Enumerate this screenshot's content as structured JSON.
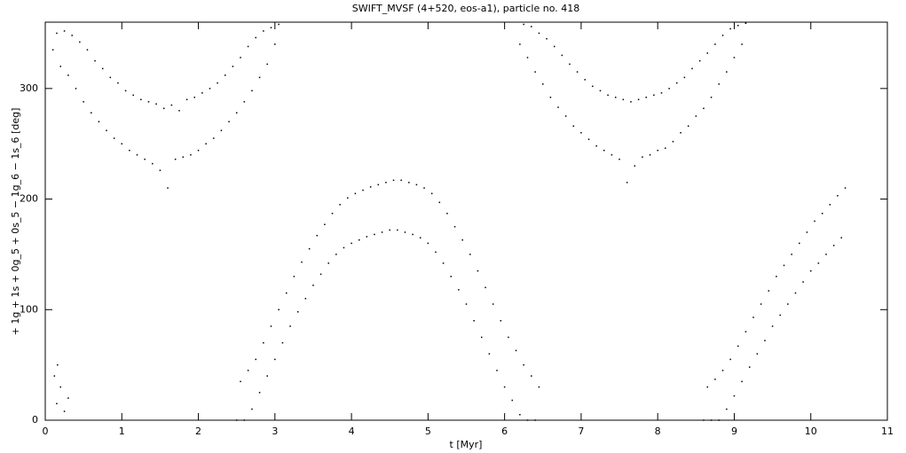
{
  "chart_data": {
    "type": "scatter",
    "title": "SWIFT_MVSF (4+520, eos-a1), particle no. 418",
    "x_label": "t [Myr]",
    "y_label": "+ 1g + 1s + 0g_5 + 0s_5 − 1g_6 − 1s_6 [deg]",
    "color": "#000000",
    "xlim": [
      0,
      11
    ],
    "ylim": [
      0,
      360
    ],
    "xticks": [
      0,
      1,
      2,
      3,
      4,
      5,
      6,
      7,
      8,
      9,
      10,
      11
    ],
    "yticks": [
      0,
      100,
      200,
      300
    ],
    "x": [
      0.1,
      0.15,
      0.2,
      0.25,
      0.3,
      0.35,
      0.4,
      0.45,
      0.5,
      0.55,
      0.6,
      0.65,
      0.7,
      0.75,
      0.8,
      0.85,
      0.9,
      0.95,
      1,
      1.05,
      1.1,
      1.15,
      1.2,
      1.25,
      1.3,
      1.35,
      1.4,
      1.45,
      1.5,
      1.55,
      1.6,
      1.65,
      1.7,
      1.75,
      1.8,
      1.85,
      1.9,
      1.95,
      2,
      2.05,
      2.1,
      2.15,
      2.2,
      2.25,
      2.3,
      2.35,
      2.4,
      2.45,
      2.5,
      2.55,
      2.6,
      2.65,
      2.7,
      2.75,
      2.8,
      2.85,
      2.9,
      2.95,
      3,
      3.05,
      0.12,
      0.15,
      0.2,
      0.25,
      0.3,
      0.16,
      2.5,
      2.55,
      2.6,
      2.65,
      2.7,
      2.75,
      2.8,
      2.85,
      2.9,
      2.95,
      3,
      3.05,
      3.1,
      3.15,
      3.2,
      3.25,
      3.3,
      3.35,
      3.4,
      3.45,
      3.5,
      3.55,
      3.6,
      3.65,
      3.7,
      3.75,
      3.8,
      3.85,
      3.9,
      3.95,
      4,
      4.05,
      4.1,
      4.15,
      4.2,
      4.25,
      4.3,
      4.35,
      4.4,
      4.45,
      4.5,
      4.55,
      4.6,
      4.65,
      4.7,
      4.75,
      4.8,
      4.85,
      4.9,
      4.95,
      5,
      5.05,
      5.1,
      5.15,
      5.2,
      5.25,
      5.3,
      5.35,
      5.4,
      5.45,
      5.5,
      5.55,
      5.6,
      5.65,
      5.7,
      5.75,
      5.8,
      5.85,
      5.9,
      5.95,
      6,
      6.05,
      6.1,
      6.15,
      6.2,
      6.25,
      6.3,
      6.35,
      6.4,
      6.45,
      6.2,
      6.25,
      6.3,
      6.35,
      6.4,
      6.45,
      6.5,
      6.55,
      6.6,
      6.65,
      6.7,
      6.75,
      6.8,
      6.85,
      6.9,
      6.95,
      7,
      7.05,
      7.1,
      7.15,
      7.2,
      7.25,
      7.3,
      7.35,
      7.4,
      7.45,
      7.5,
      7.55,
      7.6,
      7.65,
      7.7,
      7.75,
      7.8,
      7.85,
      7.9,
      7.95,
      8,
      8.05,
      8.1,
      8.15,
      8.2,
      8.25,
      8.3,
      8.35,
      8.4,
      8.45,
      8.5,
      8.55,
      8.6,
      8.65,
      8.7,
      8.75,
      8.8,
      8.85,
      8.9,
      8.95,
      9,
      9.05,
      9.1,
      9.15,
      8.6,
      8.65,
      8.7,
      8.75,
      8.8,
      8.85,
      8.9,
      8.95,
      9,
      9.05,
      9.1,
      9.15,
      9.2,
      9.25,
      9.3,
      9.35,
      9.4,
      9.45,
      9.5,
      9.55,
      9.6,
      9.65,
      9.7,
      9.75,
      9.8,
      9.85,
      9.9,
      9.95,
      10,
      10.05,
      10.1,
      10.15,
      10.2,
      10.25,
      10.3,
      10.35,
      10.4,
      10.45
    ],
    "values": [
      335,
      350,
      320,
      352,
      312,
      348,
      300,
      342,
      288,
      335,
      278,
      325,
      270,
      318,
      262,
      310,
      255,
      305,
      250,
      298,
      244,
      294,
      240,
      290,
      236,
      288,
      232,
      286,
      226,
      282,
      210,
      285,
      236,
      280,
      238,
      290,
      240,
      292,
      244,
      296,
      250,
      300,
      255,
      305,
      262,
      312,
      270,
      320,
      278,
      328,
      288,
      338,
      298,
      346,
      310,
      352,
      322,
      355,
      340,
      358,
      40,
      15,
      30,
      8,
      20,
      50,
      0,
      35,
      0,
      45,
      10,
      55,
      25,
      70,
      40,
      85,
      55,
      100,
      70,
      115,
      85,
      130,
      98,
      143,
      110,
      155,
      122,
      167,
      132,
      177,
      142,
      187,
      150,
      195,
      156,
      201,
      160,
      205,
      163,
      208,
      166,
      211,
      168,
      213,
      170,
      215,
      172,
      217,
      172,
      217,
      170,
      215,
      168,
      213,
      165,
      210,
      160,
      205,
      152,
      197,
      142,
      187,
      130,
      175,
      118,
      163,
      105,
      150,
      90,
      135,
      75,
      120,
      60,
      105,
      45,
      90,
      30,
      75,
      18,
      63,
      5,
      50,
      0,
      40,
      0,
      30,
      340,
      358,
      328,
      356,
      315,
      350,
      304,
      345,
      292,
      338,
      283,
      330,
      275,
      322,
      266,
      315,
      260,
      308,
      254,
      302,
      248,
      298,
      244,
      294,
      240,
      292,
      236,
      290,
      215,
      288,
      230,
      290,
      238,
      292,
      240,
      294,
      244,
      296,
      246,
      300,
      252,
      305,
      260,
      310,
      266,
      318,
      275,
      325,
      282,
      332,
      292,
      340,
      304,
      348,
      315,
      354,
      328,
      357,
      340,
      359,
      0,
      30,
      0,
      37,
      0,
      45,
      10,
      55,
      22,
      67,
      35,
      80,
      48,
      93,
      60,
      105,
      72,
      117,
      85,
      130,
      95,
      140,
      105,
      150,
      115,
      160,
      125,
      170,
      135,
      180,
      142,
      187,
      150,
      195,
      158,
      203,
      165,
      210
    ]
  }
}
